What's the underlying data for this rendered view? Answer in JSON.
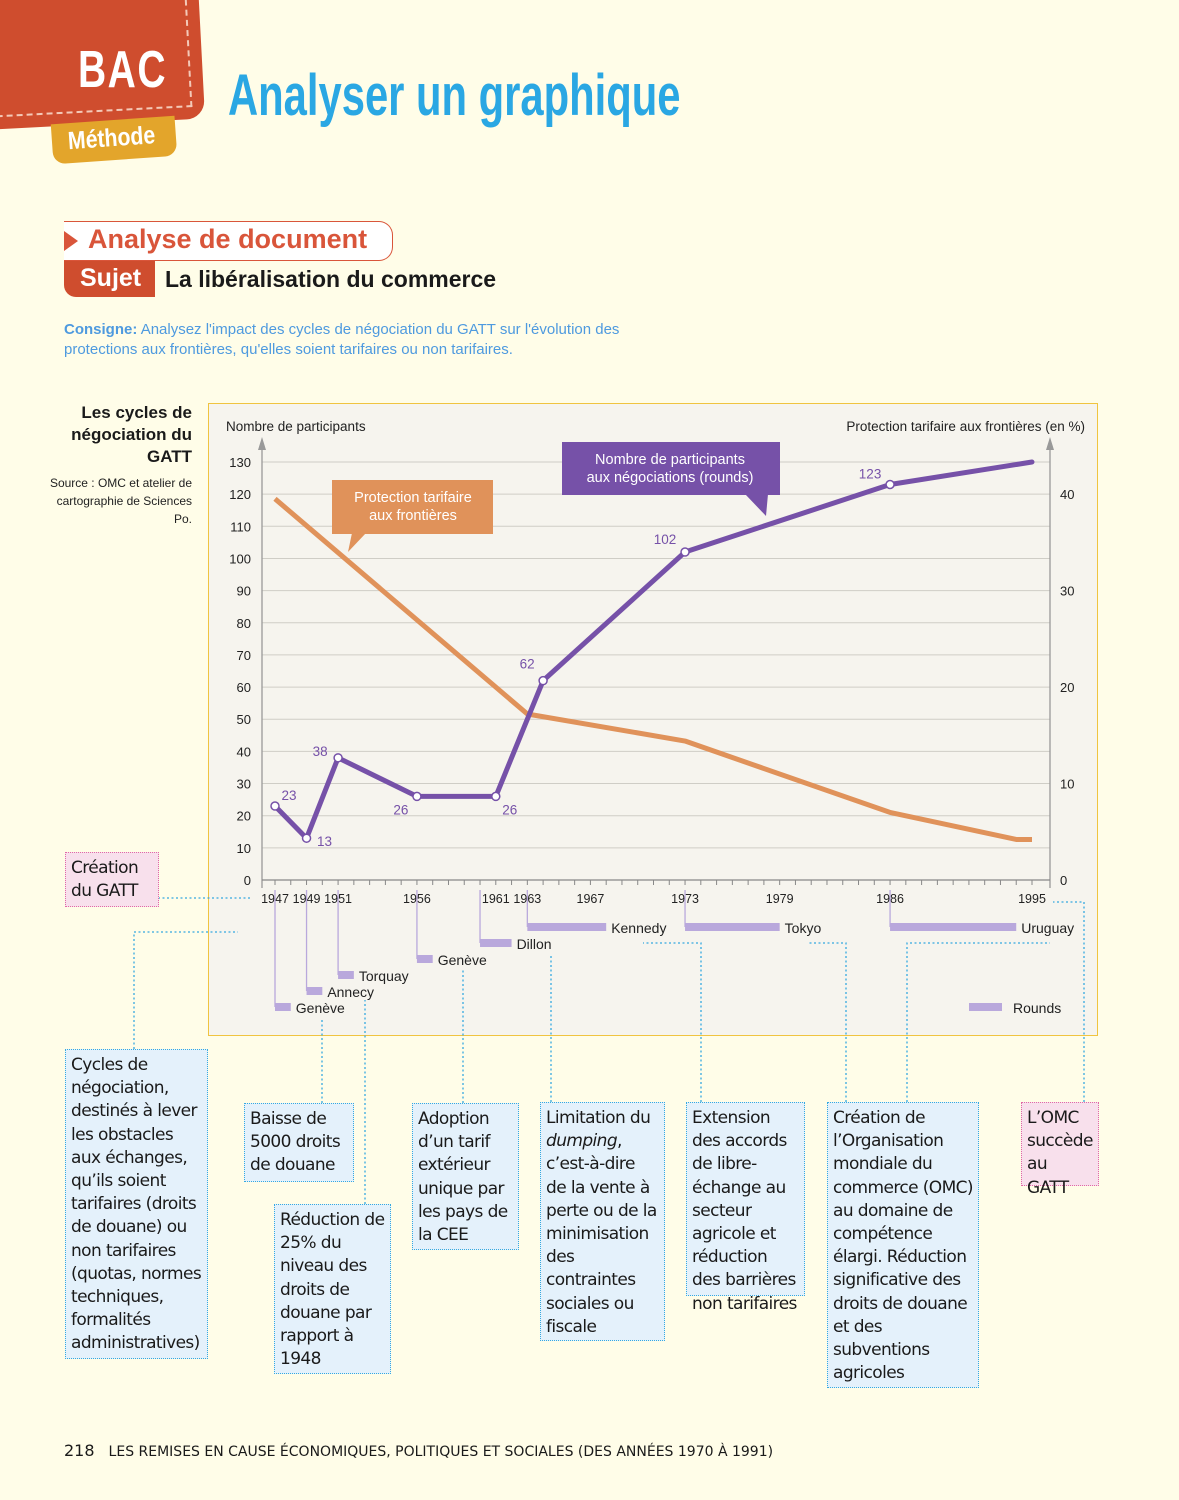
{
  "header": {
    "badge": "BAC",
    "badge_sub": "Méthode",
    "title": "Analyser un graphique"
  },
  "section": {
    "label": "Analyse de document",
    "subject_tag": "Sujet",
    "subject": "La libéralisation du commerce",
    "consigne_label": "Consigne:",
    "consigne": "Analysez l'impact des cycles de négociation du GATT sur l'évolution des protections aux frontières, qu'elles soient tarifaires ou non tarifaires."
  },
  "figure": {
    "title": "Les cycles de négociation du GATT",
    "source": "Source : OMC et atelier de cartographie de Sciences Po."
  },
  "chart_data": {
    "type": "line",
    "ylabel_left": "Nombre de participants",
    "ylabel_right": "Protection tarifaire aux frontières (en %)",
    "ylim_left": [
      0,
      130
    ],
    "yticks_left": [
      0,
      10,
      20,
      30,
      40,
      50,
      60,
      70,
      80,
      90,
      100,
      110,
      120,
      130
    ],
    "ylim_right": [
      0,
      45
    ],
    "yticks_right": [
      0,
      10,
      20,
      30,
      40
    ],
    "xlim": [
      1947,
      1995
    ],
    "xticks": [
      1947,
      1949,
      1951,
      1956,
      1961,
      1963,
      1967,
      1973,
      1979,
      1986,
      1995
    ],
    "grid": true,
    "series": [
      {
        "name": "Nombre de participants aux négociations (rounds)",
        "axis": "left",
        "color": "#7651a8",
        "x": [
          1947,
          1949,
          1951,
          1956,
          1961,
          1964,
          1973,
          1986,
          1995
        ],
        "y": [
          23,
          13,
          38,
          26,
          26,
          62,
          102,
          123,
          130
        ],
        "labels": [
          "23",
          "13",
          "38",
          "26",
          "26",
          "62",
          "102",
          "123",
          ""
        ]
      },
      {
        "name": "Protection tarifaire aux frontières",
        "axis": "right",
        "color": "#e0925a",
        "x": [
          1947,
          1963,
          1973,
          1986,
          1994,
          1995
        ],
        "y": [
          39.5,
          17.2,
          14.4,
          7.0,
          4.2,
          4.2
        ]
      }
    ],
    "rounds": [
      {
        "name": "Genève",
        "start": 1947,
        "end": 1948
      },
      {
        "name": "Annecy",
        "start": 1949,
        "end": 1950
      },
      {
        "name": "Torquay",
        "start": 1951,
        "end": 1952
      },
      {
        "name": "Genève",
        "start": 1956,
        "end": 1957
      },
      {
        "name": "Dillon",
        "start": 1960,
        "end": 1962
      },
      {
        "name": "Kennedy",
        "start": 1963,
        "end": 1968
      },
      {
        "name": "Tokyo",
        "start": 1973,
        "end": 1979
      },
      {
        "name": "Uruguay",
        "start": 1986,
        "end": 1994
      }
    ],
    "rounds_legend": "Rounds",
    "rounds_color": "#b9a8dc"
  },
  "notes": {
    "creation_gatt": "Création du GATT",
    "cycles": "Cycles de négociation, destinés à lever les obstacles aux échanges, qu’ils soient tarifaires (droits de douane) ou non tarifaires (quotas, normes techniques, formalités administratives)",
    "baisse": "Baisse de 5000 droits de douane",
    "reduction": "Réduction de 25% du niveau des droits de douane par rapport à 1948",
    "adoption": "Adoption d’un tarif extérieur unique par les pays de la CEE",
    "limitation_1": "Limitation du ",
    "limitation_em": "dumping",
    "limitation_2": ", c’est-à-dire de la vente à perte ou de la minimisation des contraintes sociales ou fiscale",
    "extension": "Extension des accords de libre-échange au secteur agricole et réduction des barrières non tarifaires",
    "creation_omc": "Création de l’Organisation mondiale du commerce (OMC) au domaine de compétence élargi. Réduction significative des droits de douane et des subventions agricoles",
    "omc_succede": "L’OMC succède au GATT"
  },
  "footer": {
    "page": "218",
    "text": "LES REMISES EN CAUSE ÉCONOMIQUES, POLITIQUES ET SOCIALES (DES ANNÉES 1970 À 1991)"
  }
}
